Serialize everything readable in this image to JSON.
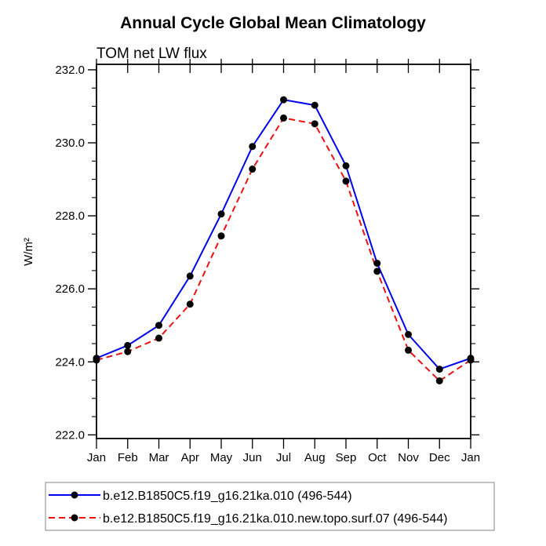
{
  "chart_data": {
    "type": "line",
    "title": "Annual Cycle Global Mean Climatology",
    "subtitle": "TOM net LW flux",
    "ylabel": "W/m²",
    "x_tick_labels": [
      "Jan",
      "Feb",
      "Mar",
      "Apr",
      "May",
      "Jun",
      "Jul",
      "Aug",
      "Sep",
      "Oct",
      "Nov",
      "Dec",
      "Jan"
    ],
    "y_tick_labels": [
      "222.0",
      "224.0",
      "226.0",
      "228.0",
      "230.0",
      "232.0"
    ],
    "y_axis": {
      "min": 221.9,
      "max": 232.15,
      "major_step": 2.0,
      "minor_step": 0.5
    },
    "grid": "off",
    "legend_position": "bottom",
    "axis_color": "#000000",
    "marker_color": "#000000",
    "series": [
      {
        "name": "b.e12.B1850C5.f19_g16.21ka.010 (496-544)",
        "color": "#0000ee",
        "line_style": "solid",
        "marker": "circle",
        "values": [
          224.1,
          224.45,
          225.0,
          226.35,
          228.05,
          229.9,
          231.18,
          231.03,
          229.37,
          226.7,
          224.75,
          223.8,
          224.1
        ]
      },
      {
        "name": "b.e12.B1850C5.f19_g16.21ka.010.new.topo.surf.07 (496-544)",
        "color": "#ee1111",
        "line_style": "dashed",
        "marker": "circle",
        "values": [
          224.05,
          224.28,
          224.65,
          225.58,
          227.45,
          229.28,
          230.68,
          230.52,
          228.95,
          226.48,
          224.32,
          223.48,
          224.05
        ]
      }
    ]
  }
}
